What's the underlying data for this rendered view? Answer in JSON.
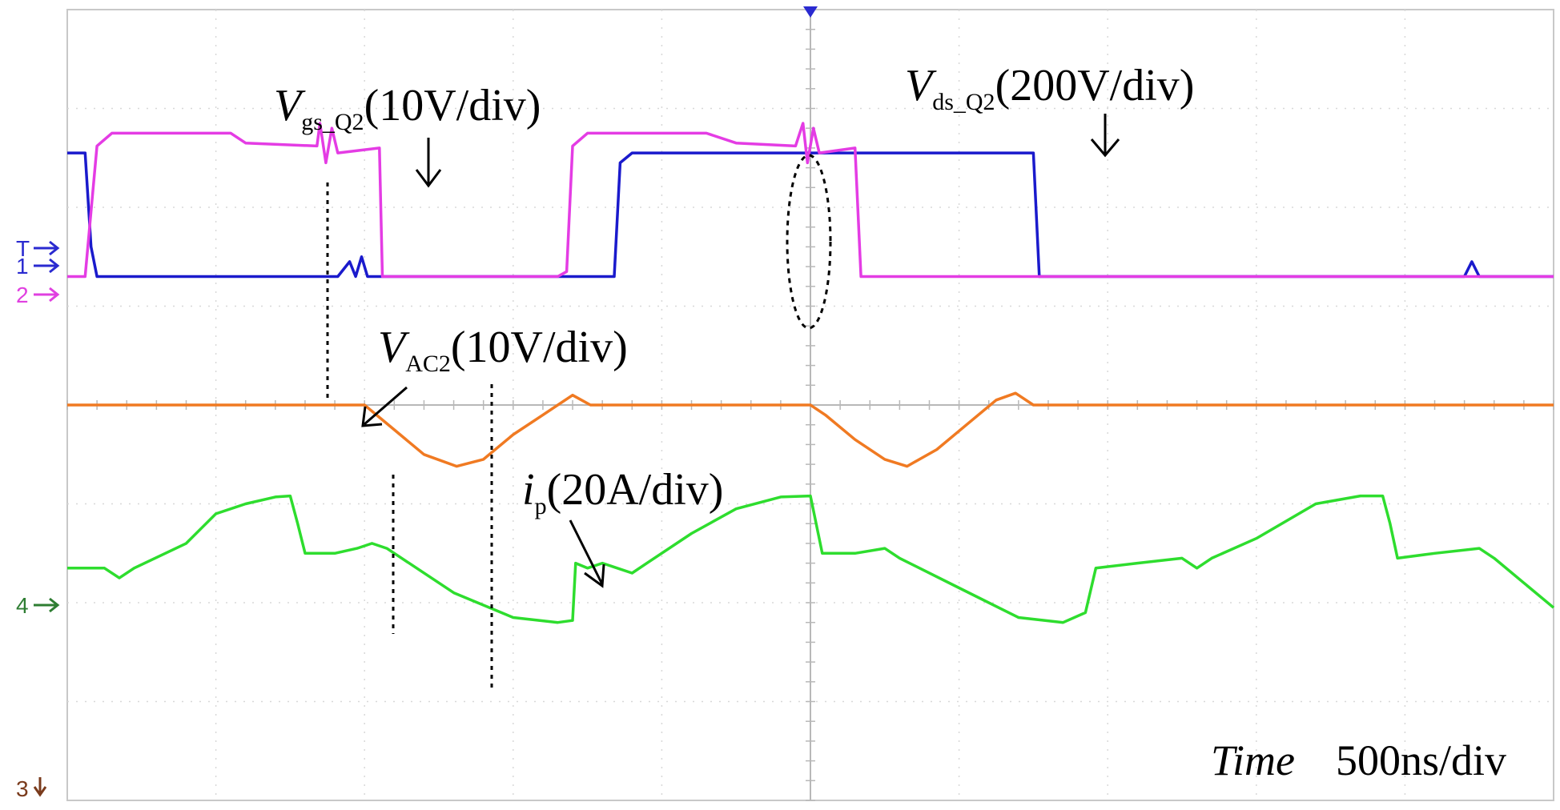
{
  "chart_data": {
    "type": "line",
    "title": "",
    "x_unit": "div",
    "xlim": [
      0,
      10
    ],
    "ylim": [
      -4,
      4
    ],
    "grid": true,
    "time_scale": {
      "label": "Time",
      "value": "500ns/div"
    },
    "channel_markers": [
      {
        "id": "T",
        "label": "T",
        "color": "#2a2ad0",
        "arrow": "right"
      },
      {
        "id": "1",
        "label": "1",
        "color": "#2a2ad0",
        "arrow": "right"
      },
      {
        "id": "2",
        "label": "2",
        "color": "#e040e0",
        "arrow": "right"
      },
      {
        "id": "4",
        "label": "4",
        "color": "#2e7d32",
        "arrow": "right"
      },
      {
        "id": "3",
        "label": "3",
        "color": "#7a3b1c",
        "arrow": "down"
      }
    ],
    "series": [
      {
        "name": "Vgs_Q2",
        "channel": "1",
        "color": "#1a1acc",
        "points": [
          [
            0,
            2.55
          ],
          [
            0.12,
            2.55
          ],
          [
            0.16,
            1.6
          ],
          [
            0.2,
            1.3
          ],
          [
            1.82,
            1.3
          ],
          [
            1.9,
            1.45
          ],
          [
            1.94,
            1.3
          ],
          [
            1.98,
            1.5
          ],
          [
            2.02,
            1.3
          ],
          [
            3.68,
            1.3
          ],
          [
            3.72,
            2.45
          ],
          [
            3.8,
            2.55
          ],
          [
            6.5,
            2.55
          ],
          [
            6.54,
            1.3
          ],
          [
            6.6,
            1.3
          ],
          [
            9.4,
            1.3
          ],
          [
            9.45,
            1.45
          ],
          [
            9.5,
            1.3
          ],
          [
            10.0,
            1.3
          ]
        ]
      },
      {
        "name": "Vds_Q2",
        "channel": "2",
        "color": "#e43ce4",
        "points": [
          [
            0,
            1.3
          ],
          [
            0.12,
            1.3
          ],
          [
            0.2,
            2.62
          ],
          [
            0.3,
            2.75
          ],
          [
            1.1,
            2.75
          ],
          [
            1.2,
            2.65
          ],
          [
            1.68,
            2.62
          ],
          [
            1.7,
            2.85
          ],
          [
            1.74,
            2.45
          ],
          [
            1.78,
            2.8
          ],
          [
            1.82,
            2.55
          ],
          [
            2.1,
            2.6
          ],
          [
            2.12,
            1.3
          ],
          [
            2.2,
            1.3
          ],
          [
            3.3,
            1.3
          ],
          [
            3.36,
            1.35
          ],
          [
            3.4,
            2.62
          ],
          [
            3.5,
            2.75
          ],
          [
            4.3,
            2.75
          ],
          [
            4.5,
            2.65
          ],
          [
            4.9,
            2.62
          ],
          [
            4.95,
            2.85
          ],
          [
            4.98,
            2.45
          ],
          [
            5.02,
            2.8
          ],
          [
            5.06,
            2.55
          ],
          [
            5.3,
            2.6
          ],
          [
            5.34,
            1.3
          ],
          [
            5.4,
            1.3
          ],
          [
            10.0,
            1.3
          ]
        ]
      },
      {
        "name": "VAC2",
        "channel": "3",
        "color": "#f07a22",
        "points": [
          [
            0,
            0
          ],
          [
            2.0,
            0
          ],
          [
            2.2,
            -0.25
          ],
          [
            2.4,
            -0.5
          ],
          [
            2.62,
            -0.62
          ],
          [
            2.8,
            -0.55
          ],
          [
            3.0,
            -0.3
          ],
          [
            3.2,
            -0.1
          ],
          [
            3.4,
            0.1
          ],
          [
            3.52,
            0
          ],
          [
            5.0,
            0
          ],
          [
            5.1,
            -0.1
          ],
          [
            5.3,
            -0.35
          ],
          [
            5.5,
            -0.55
          ],
          [
            5.65,
            -0.62
          ],
          [
            5.85,
            -0.45
          ],
          [
            6.05,
            -0.2
          ],
          [
            6.25,
            0.05
          ],
          [
            6.38,
            0.12
          ],
          [
            6.5,
            0
          ],
          [
            10.0,
            0
          ]
        ]
      },
      {
        "name": "ip",
        "channel": "4",
        "color": "#2edd2e",
        "points": [
          [
            0,
            -1.65
          ],
          [
            0.25,
            -1.65
          ],
          [
            0.35,
            -1.75
          ],
          [
            0.45,
            -1.65
          ],
          [
            0.8,
            -1.4
          ],
          [
            1.0,
            -1.1
          ],
          [
            1.2,
            -1.0
          ],
          [
            1.4,
            -0.93
          ],
          [
            1.5,
            -0.92
          ],
          [
            1.55,
            -1.2
          ],
          [
            1.6,
            -1.5
          ],
          [
            1.8,
            -1.5
          ],
          [
            1.95,
            -1.45
          ],
          [
            2.05,
            -1.4
          ],
          [
            2.15,
            -1.45
          ],
          [
            2.3,
            -1.6
          ],
          [
            2.6,
            -1.9
          ],
          [
            3.0,
            -2.15
          ],
          [
            3.3,
            -2.2
          ],
          [
            3.4,
            -2.18
          ],
          [
            3.42,
            -1.6
          ],
          [
            3.5,
            -1.65
          ],
          [
            3.6,
            -1.6
          ],
          [
            3.8,
            -1.7
          ],
          [
            3.9,
            -1.6
          ],
          [
            4.2,
            -1.3
          ],
          [
            4.5,
            -1.05
          ],
          [
            4.8,
            -0.93
          ],
          [
            5.0,
            -0.92
          ],
          [
            5.08,
            -1.5
          ],
          [
            5.3,
            -1.5
          ],
          [
            5.5,
            -1.45
          ],
          [
            5.6,
            -1.55
          ],
          [
            6.0,
            -1.85
          ],
          [
            6.4,
            -2.15
          ],
          [
            6.7,
            -2.2
          ],
          [
            6.85,
            -2.1
          ],
          [
            6.92,
            -1.65
          ],
          [
            7.2,
            -1.6
          ],
          [
            7.5,
            -1.55
          ],
          [
            7.6,
            -1.65
          ],
          [
            7.7,
            -1.55
          ],
          [
            8.0,
            -1.35
          ],
          [
            8.4,
            -1.0
          ],
          [
            8.7,
            -0.92
          ],
          [
            8.85,
            -0.92
          ],
          [
            8.9,
            -1.2
          ],
          [
            8.95,
            -1.55
          ],
          [
            9.2,
            -1.5
          ],
          [
            9.5,
            -1.45
          ],
          [
            9.6,
            -1.55
          ],
          [
            9.8,
            -1.8
          ],
          [
            10.0,
            -2.05
          ]
        ]
      }
    ],
    "annotations": [
      {
        "id": "vgs",
        "main": "V",
        "sub": "gs_Q2",
        "rest": "(10V/div)"
      },
      {
        "id": "vds",
        "main": "V",
        "sub": "ds_Q2",
        "rest": "(200V/div)"
      },
      {
        "id": "vac",
        "main": "V",
        "sub": "AC2",
        "rest": "(10V/div)"
      },
      {
        "id": "ip",
        "main": "i",
        "sub": "p",
        "rest": "(20A/div)"
      }
    ]
  }
}
